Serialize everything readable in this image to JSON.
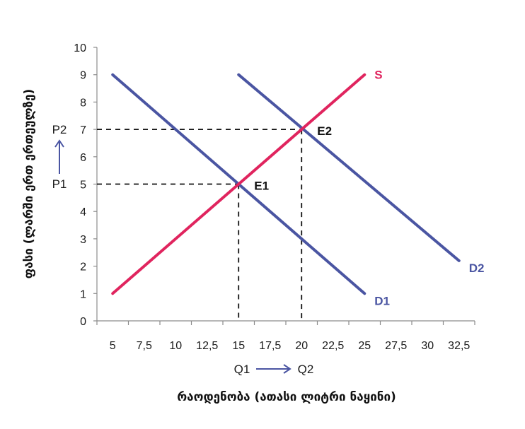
{
  "chart_data": {
    "type": "line",
    "xlabel": "რაოდენობა (ათასი ლიტრი ნაყინი)",
    "ylabel": "ფასი (ლარში ერთ ერთეულზე)",
    "x_ticks": [
      "5",
      "7,5",
      "10",
      "12,5",
      "15",
      "17,5",
      "20",
      "22,5",
      "25",
      "27,5",
      "30",
      "32,5"
    ],
    "y_ticks": [
      "0",
      "1",
      "2",
      "3",
      "4",
      "5",
      "6",
      "7",
      "8",
      "9",
      "10"
    ],
    "xlim": [
      3.75,
      33.75
    ],
    "ylim": [
      0,
      10
    ],
    "grid": false,
    "series": [
      {
        "name": "S",
        "color": "#e0245e",
        "points": [
          [
            5,
            1
          ],
          [
            25,
            9
          ]
        ]
      },
      {
        "name": "D1",
        "color": "#4a55a2",
        "points": [
          [
            5,
            9
          ],
          [
            25,
            1
          ]
        ]
      },
      {
        "name": "D2",
        "color": "#4a55a2",
        "points": [
          [
            15,
            9
          ],
          [
            32.5,
            2.2
          ]
        ]
      }
    ],
    "equilibria": [
      {
        "label": "E1",
        "x": 15,
        "y": 5
      },
      {
        "label": "E2",
        "x": 20,
        "y": 7
      }
    ],
    "price_markers": {
      "p1": "P1",
      "p2": "P2"
    },
    "quantity_markers": {
      "q1": "Q1",
      "q2": "Q2"
    }
  }
}
